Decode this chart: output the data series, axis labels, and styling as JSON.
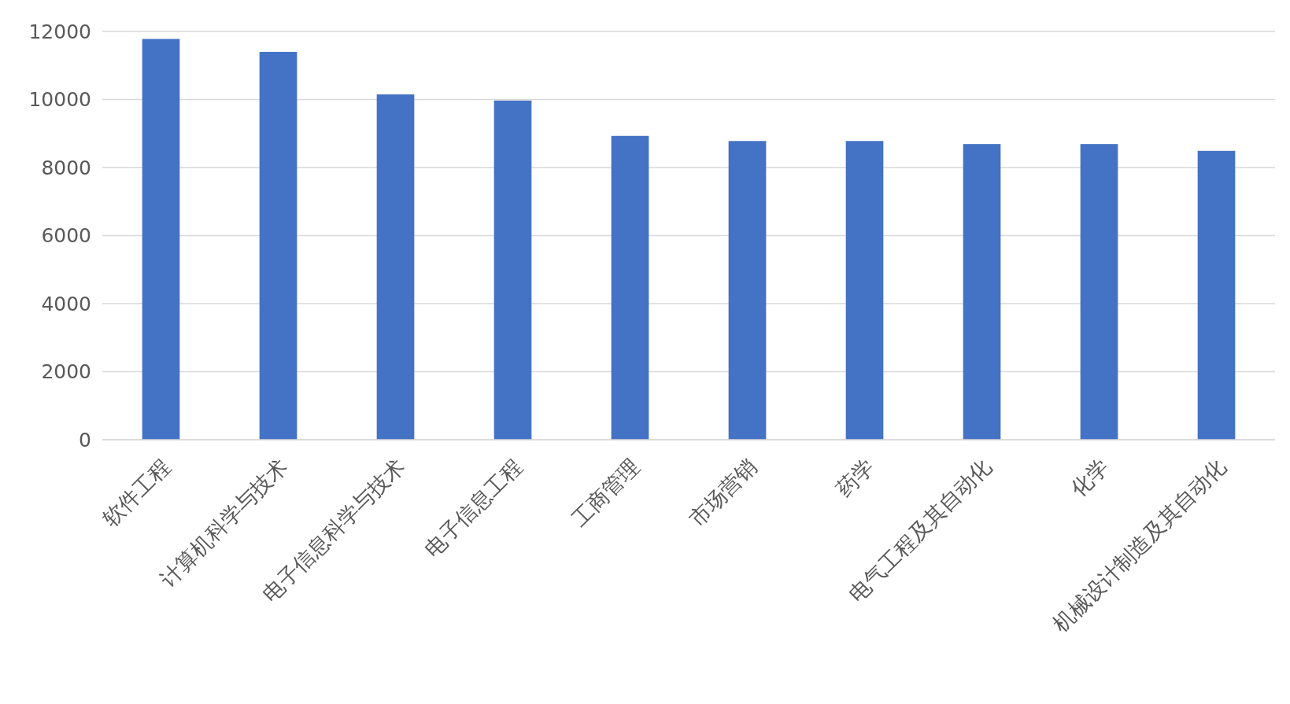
{
  "chart_data": {
    "type": "bar",
    "categories": [
      "软件工程",
      "计算机科学与技术",
      "电子信息科学与技术",
      "电子信息工程",
      "工商管理",
      "市场营销",
      "药学",
      "电气工程及其自动化",
      "化学",
      "机械设计制造及其自动化"
    ],
    "values": [
      11780,
      11400,
      10150,
      9970,
      8930,
      8780,
      8780,
      8690,
      8690,
      8490
    ],
    "color": "#4472c4",
    "ylim": [
      0,
      12000
    ],
    "yticks": [
      0,
      2000,
      4000,
      6000,
      8000,
      10000,
      12000
    ],
    "grid": "y"
  }
}
